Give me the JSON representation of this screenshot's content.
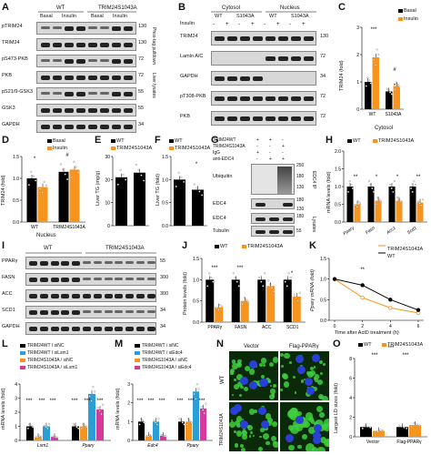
{
  "labels": {
    "A": "A",
    "B": "B",
    "C": "C",
    "D": "D",
    "E": "E",
    "F": "F",
    "G": "G",
    "H": "H",
    "I": "I",
    "J": "J",
    "K": "K",
    "L": "L",
    "M": "M",
    "N": "N",
    "O": "O"
  },
  "panel_a": {
    "groups": [
      "WT",
      "TRIM24S1043A"
    ],
    "conditions": [
      "Basal",
      "Insulin"
    ],
    "rows": [
      "pTRIM24",
      "TRIM24",
      "pS473-PKB",
      "PKB",
      "pS21/9-GSK3",
      "GSK3",
      "GAPDH"
    ],
    "mw": [
      "130",
      "130",
      "72",
      "72",
      "55",
      "55",
      "34"
    ],
    "side": [
      "Phos-tag pulldown",
      "Liver lysates"
    ]
  },
  "panel_b": {
    "fractions": [
      "Cytosol",
      "Nucleus"
    ],
    "genotypes": [
      "WT",
      "S1043A",
      "WT",
      "S1043A"
    ],
    "insulin_label": "Insulin",
    "insulin_signs": [
      "-",
      "+",
      "-",
      "+",
      "-",
      "+",
      "-",
      "+"
    ],
    "rows": [
      "TRIM24",
      "Lamin A/C",
      "GAPDH",
      "pT308-PKB",
      "PKB"
    ],
    "mw": [
      "130",
      "72",
      "34",
      "72",
      "72"
    ]
  },
  "panel_c": {
    "legend": [
      "Basal",
      "Insulin"
    ],
    "ylabel": "TRIM24 (fold)",
    "xlabel": "Cytosol",
    "categories": [
      "WT",
      "S1043A"
    ],
    "yticks": [
      "0",
      "1",
      "2",
      "3"
    ],
    "sig": [
      "***",
      "#",
      "*"
    ]
  },
  "panel_d": {
    "legend": [
      "Basal",
      "Insulin"
    ],
    "ylabel": "TRIM24 (fold)",
    "xlabel": "Nucleus",
    "categories": [
      "WT",
      "TRIM24S1043A"
    ],
    "yticks": [
      "0.0",
      "0.5",
      "1.0",
      "1.5"
    ],
    "sig": [
      "*",
      "#"
    ]
  },
  "panel_e": {
    "legend": [
      "WT",
      "TRIM24S1043A"
    ],
    "ylabel": "Liver TG (mg/g)",
    "yticks": [
      "0",
      "10",
      "20",
      "30"
    ]
  },
  "panel_f": {
    "legend": [
      "WT",
      "TRIM24S1043A"
    ],
    "ylabel": "Liver TG (fold)",
    "yticks": [
      "0.0",
      "0.5",
      "1.0",
      "1.5"
    ],
    "sig": [
      "*"
    ]
  },
  "panel_g": {
    "header": [
      "TRIM24WT",
      "TRIM24S1043A",
      "IgG",
      "anti-EDC4"
    ],
    "signs": [
      [
        "+",
        "+",
        "-"
      ],
      [
        "-",
        "-",
        "+"
      ],
      [
        "+",
        "-",
        "-"
      ],
      [
        "-",
        "+",
        "+"
      ]
    ],
    "rows": [
      "Ubiquitin",
      "EDC4",
      "EDC4",
      "Tubulin"
    ],
    "mw": [
      "250",
      "180",
      "130",
      "180",
      "130",
      "180",
      "55"
    ],
    "side": [
      "EDC4 IP",
      "Lysates"
    ]
  },
  "panel_h": {
    "legend": [
      "WT",
      "TRIM24S1043A"
    ],
    "ylabel": "mRNA levels (fold)",
    "categories": [
      "Pparγ",
      "Fasn",
      "Acc1",
      "Scd1"
    ],
    "yticks": [
      "0.0",
      "0.5",
      "1.0",
      "1.5",
      "2.0"
    ],
    "sig": [
      "**",
      "*",
      "*",
      "**"
    ]
  },
  "panel_i": {
    "groups": [
      "WT",
      "TRIM24S1043A"
    ],
    "rows": [
      "PPARγ",
      "FASN",
      "ACC",
      "SCD1",
      "GAPDH"
    ],
    "mw": [
      "55",
      "300",
      "300",
      "34",
      "34"
    ]
  },
  "panel_j": {
    "legend": [
      "WT",
      "TRIM24S1043A"
    ],
    "ylabel": "Protein levels (fold)",
    "categories": [
      "PPARγ",
      "FASN",
      "ACC",
      "SCD1"
    ],
    "yticks": [
      "0.0",
      "0.5",
      "1.0",
      "1.5"
    ],
    "sig": [
      "***",
      "***",
      "*"
    ]
  },
  "panel_k": {
    "legend": [
      "TRIM24S1043A",
      "WT"
    ],
    "ylabel": "Pparγ mRNA (fold)",
    "xlabel": "Time after ActD treatment (h)",
    "xticks": [
      "0",
      "2",
      "4",
      "6"
    ],
    "yticks": [
      "0.0",
      "0.5",
      "1.0",
      "1.5"
    ],
    "sig": [
      "**"
    ]
  },
  "panel_l": {
    "legend": [
      "TRIM24WT / siNC",
      "TRIM24WT / siLsm1",
      "TRIM24S1043A / siNC",
      "TRIM24S1043A / siLsm1"
    ],
    "ylabel": "mRNA levels (fold)",
    "categories": [
      "Lsm1",
      "Pparγ"
    ],
    "yticks": [
      "0",
      "1",
      "2",
      "3",
      "4"
    ],
    "sig": [
      "***",
      "***",
      "***",
      "***",
      "***",
      "***"
    ]
  },
  "panel_m": {
    "legend": [
      "TRIM24WT / siNC",
      "TRIM24WT / siEdc4",
      "TRIM24S1043A / siNC",
      "TRIM24S1043A / siEdc4"
    ],
    "ylabel": "mRNA levels (fold)",
    "categories": [
      "Edc4",
      "Pparγ"
    ],
    "yticks": [
      "0",
      "1",
      "2",
      "3"
    ],
    "sig": [
      "***",
      "***",
      "***",
      "***",
      "***",
      "***"
    ]
  },
  "panel_n": {
    "cols": [
      "Vector",
      "Flag-PPARγ"
    ],
    "rows": [
      "WT",
      "TRIM24S1043A"
    ]
  },
  "panel_o": {
    "legend": [
      "WT",
      "TRIM24S1043A"
    ],
    "ylabel": "Largest LD sizes (fold)",
    "categories": [
      "Vector",
      "Flag-PPARγ"
    ],
    "yticks": [
      "0",
      "2",
      "4",
      "6",
      "8"
    ],
    "sig": [
      "***",
      "***",
      "***"
    ]
  },
  "colors": {
    "wt": "#000000",
    "mutant": "#f7941d",
    "blue": "#2a9fd6",
    "pink": "#d6399a"
  },
  "chart_data": [
    {
      "panel": "C",
      "type": "bar",
      "categories": [
        "WT",
        "S1043A"
      ],
      "series": [
        {
          "name": "Basal",
          "values": [
            1.0,
            0.65
          ]
        },
        {
          "name": "Insulin",
          "values": [
            1.9,
            0.85
          ]
        }
      ],
      "ylim": [
        0,
        3
      ]
    },
    {
      "panel": "D",
      "type": "bar",
      "categories": [
        "WT",
        "TRIM24S1043A"
      ],
      "series": [
        {
          "name": "Basal",
          "values": [
            1.0,
            1.15
          ]
        },
        {
          "name": "Insulin",
          "values": [
            0.8,
            1.2
          ]
        }
      ],
      "ylim": [
        0,
        1.5
      ]
    },
    {
      "panel": "E",
      "type": "bar",
      "categories": [
        "WT",
        "TRIM24S1043A"
      ],
      "values": [
        21,
        23
      ],
      "ylim": [
        0,
        30
      ]
    },
    {
      "panel": "F",
      "type": "bar",
      "categories": [
        "WT",
        "TRIM24S1043A"
      ],
      "values": [
        1.0,
        0.78
      ],
      "ylim": [
        0,
        1.5
      ]
    },
    {
      "panel": "H",
      "type": "bar",
      "categories": [
        "Pparγ",
        "Fasn",
        "Acc1",
        "Scd1"
      ],
      "series": [
        {
          "name": "WT",
          "values": [
            1.0,
            1.0,
            1.0,
            1.0
          ]
        },
        {
          "name": "TRIM24S1043A",
          "values": [
            0.5,
            0.6,
            0.6,
            0.55
          ]
        }
      ],
      "ylim": [
        0,
        2.0
      ]
    },
    {
      "panel": "J",
      "type": "bar",
      "categories": [
        "PPARγ",
        "FASN",
        "ACC",
        "SCD1"
      ],
      "series": [
        {
          "name": "WT",
          "values": [
            1.0,
            1.0,
            1.0,
            1.0
          ]
        },
        {
          "name": "TRIM24S1043A",
          "values": [
            0.35,
            0.5,
            0.85,
            0.6
          ]
        }
      ],
      "ylim": [
        0,
        1.5
      ]
    },
    {
      "panel": "K",
      "type": "line",
      "x": [
        0,
        2,
        4,
        6
      ],
      "series": [
        {
          "name": "TRIM24S1043A",
          "values": [
            1.0,
            0.55,
            0.3,
            0.18
          ]
        },
        {
          "name": "WT",
          "values": [
            1.0,
            0.85,
            0.5,
            0.25
          ]
        }
      ],
      "ylim": [
        0,
        1.5
      ]
    },
    {
      "panel": "L",
      "type": "bar",
      "categories": [
        "Lsm1",
        "Pparγ"
      ],
      "series": [
        {
          "name": "TRIM24WT / siNC",
          "values": [
            1.0,
            1.0
          ]
        },
        {
          "name": "TRIM24WT / siLsm1",
          "values": [
            0.25,
            1.0
          ]
        },
        {
          "name": "TRIM24S1043A / siNC",
          "values": [
            1.0,
            3.3
          ]
        },
        {
          "name": "TRIM24S1043A / siLsm1",
          "values": [
            0.25,
            2.2
          ]
        }
      ],
      "ylim": [
        0,
        4
      ]
    },
    {
      "panel": "M",
      "type": "bar",
      "categories": [
        "Edc4",
        "Pparγ"
      ],
      "series": [
        {
          "name": "TRIM24WT / siNC",
          "values": [
            1.0,
            1.0
          ]
        },
        {
          "name": "TRIM24WT / siEdc4",
          "values": [
            0.25,
            1.0
          ]
        },
        {
          "name": "TRIM24S1043A / siNC",
          "values": [
            1.0,
            2.6
          ]
        },
        {
          "name": "TRIM24S1043A / siEdc4",
          "values": [
            0.25,
            1.7
          ]
        }
      ],
      "ylim": [
        0,
        3
      ]
    },
    {
      "panel": "O",
      "type": "bar",
      "categories": [
        "Vector",
        "Flag-PPARγ"
      ],
      "series": [
        {
          "name": "WT",
          "values": [
            1.0,
            1.0
          ]
        },
        {
          "name": "TRIM24S1043A",
          "values": [
            0.6,
            1.2
          ]
        }
      ],
      "ylim": [
        0,
        8
      ]
    }
  ]
}
